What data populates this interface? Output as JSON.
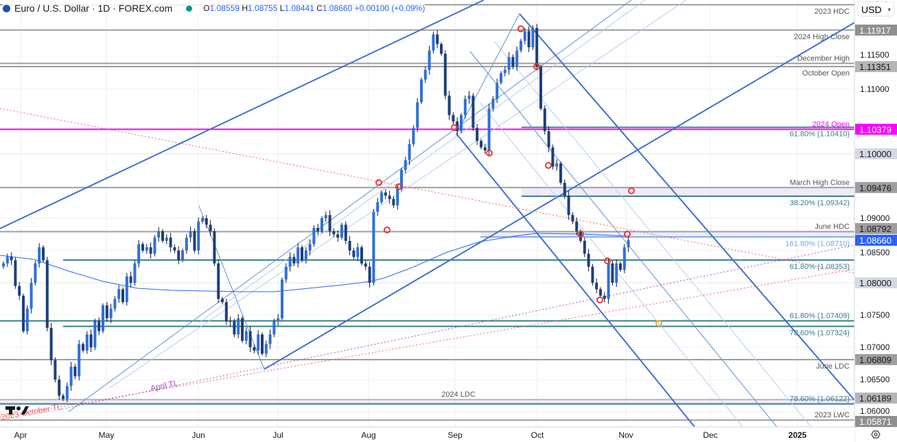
{
  "header": {
    "symbol": "Euro / U.S. Dollar · 1D · FOREX.com",
    "open": "1.08559",
    "high": "1.08755",
    "low": "1.08441",
    "close": "1.08660",
    "change": "+0.00100 (+0.09%)",
    "o_label": "O",
    "h_label": "H",
    "l_label": "L",
    "c_label": "C"
  },
  "currency_selector": "USD",
  "chart_data": {
    "type": "candlestick",
    "title": "",
    "x_tick_labels": [
      "Apr",
      "May",
      "Jun",
      "Jul",
      "Aug",
      "Sep",
      "Oct",
      "Nov",
      "Dec",
      "2025"
    ],
    "y_range": [
      1.0565,
      1.1235
    ],
    "y_tick_labels": [
      "1.11500",
      "1.11000",
      "1.09000",
      "1.08500",
      "1.07500",
      "1.07000",
      "1.06500",
      "1.06000"
    ],
    "grid": true,
    "close": [
      1.083,
      1.084,
      1.0835,
      1.0795,
      1.078,
      1.0725,
      1.076,
      1.08,
      1.083,
      1.0855,
      1.0835,
      1.073,
      1.068,
      1.065,
      1.0625,
      1.062,
      1.064,
      1.067,
      1.0655,
      1.0705,
      1.0695,
      1.072,
      1.07,
      1.074,
      1.0725,
      1.0765,
      1.0745,
      1.076,
      1.0775,
      1.079,
      1.077,
      1.081,
      1.08,
      1.083,
      1.086,
      1.085,
      1.0855,
      1.0845,
      1.087,
      1.088,
      1.0865,
      1.087,
      1.0855,
      1.085,
      1.0835,
      1.085,
      1.087,
      1.088,
      1.085,
      1.0895,
      1.09,
      1.089,
      1.088,
      1.083,
      1.0775,
      1.077,
      1.074,
      1.074,
      1.072,
      1.0745,
      1.071,
      1.0725,
      1.07,
      1.0695,
      1.072,
      1.069,
      1.0705,
      1.072,
      1.074,
      1.0745,
      1.0805,
      1.0825,
      1.084,
      1.083,
      1.0855,
      1.0835,
      1.085,
      1.086,
      1.0885,
      1.088,
      1.09,
      1.0905,
      1.088,
      1.0875,
      1.087,
      1.089,
      1.0865,
      1.085,
      1.084,
      1.0855,
      1.083,
      1.0825,
      1.08,
      1.091,
      1.0925,
      1.094,
      1.0935,
      1.093,
      1.092,
      1.0945,
      1.0975,
      1.099,
      1.1015,
      1.104,
      1.108,
      1.1115,
      1.113,
      1.116,
      1.1185,
      1.117,
      1.1155,
      1.109,
      1.106,
      1.105,
      1.1035,
      1.106,
      1.1085,
      1.109,
      1.104,
      1.102,
      1.101,
      1.1005,
      1.107,
      1.1085,
      1.111,
      1.1125,
      1.113,
      1.115,
      1.1135,
      1.116,
      1.1175,
      1.119,
      1.1165,
      1.1195,
      1.1135,
      1.107,
      1.1035,
      1.101,
      1.098,
      1.0985,
      1.0955,
      1.0935,
      1.0905,
      1.0895,
      1.088,
      1.0865,
      1.0845,
      1.0825,
      1.08,
      1.079,
      1.078,
      1.0775,
      1.083,
      1.08,
      1.083,
      1.082,
      1.0855,
      1.0866
    ],
    "levels": [
      {
        "label": "2023 HDC",
        "price": 1.1231,
        "color": "#9e9e9e"
      },
      {
        "label": "2024 High Close",
        "price": 1.11917,
        "color": "#9e9e9e",
        "axis": "1.11917",
        "axis_bg": "#8f8f8f"
      },
      {
        "label": "December High",
        "price": 1.114,
        "color": "#9e9e9e"
      },
      {
        "label": "October Open",
        "price": 1.11351,
        "color": "#9e9e9e",
        "axis": "1.11351",
        "axis_bg": "#b5b5b5"
      },
      {
        "label": "2024 Open",
        "price": 1.10379,
        "color": "#ff00ff",
        "axis": "1.10379",
        "axis_bg": "#ff00ff"
      },
      {
        "label": "61.80% (1.10410)",
        "price": 1.1041,
        "color": "#3a7d8c"
      },
      {
        "label": "",
        "price": 1.1,
        "color": "#e6e6e6",
        "axis": "1.10000",
        "axis_bg": "#d6d9e0"
      },
      {
        "label": "March High Close",
        "price": 1.09476,
        "color": "#9e9e9e",
        "axis": "1.09476",
        "axis_bg": "#9e9e9e"
      },
      {
        "label": "38.20% (1.09342)",
        "price": 1.09342,
        "color": "#3a7d8c"
      },
      {
        "label": "June HDC",
        "price": 1.08792,
        "color": "#9e9e9e",
        "axis": "1.08792",
        "axis_bg": "#9e9e9e"
      },
      {
        "label": "161.80% (1.08710)",
        "price": 1.0871,
        "color": "#7aa7f0"
      },
      {
        "label": "61.80% (1.08353)",
        "price": 1.08353,
        "color": "#3a7d8c"
      },
      {
        "label": "",
        "price": 1.08,
        "color": "#e6e6e6",
        "axis": "1.08000",
        "axis_bg": "#d6d9e0"
      },
      {
        "label": "61.80% (1.07409)",
        "price": 1.07409,
        "color": "#3a7d8c"
      },
      {
        "label": "78.60% (1.07324)",
        "price": 1.07324,
        "color": "#3a7d8c"
      },
      {
        "label": "June LDC",
        "price": 1.06809,
        "color": "#9e9e9e",
        "axis": "1.06809",
        "axis_bg": "#9e9e9e"
      },
      {
        "label": "2024 LDC",
        "price": 1.06189,
        "color": "#b5b5b5",
        "axis": "1.06189",
        "axis_bg": "#b5b5b5"
      },
      {
        "label": "78.60% (1.06122)",
        "price": 1.06122,
        "color": "#3a7d8c"
      },
      {
        "label": "2023 LWC",
        "price": 1.05871,
        "color": "#9e9e9e",
        "axis": "1.05871",
        "axis_bg": "#8f8f8f"
      }
    ],
    "last_price": {
      "value": "1.08660",
      "color": "#2962ff"
    },
    "trendline_labels": [
      "April TL",
      "2023 October TL"
    ],
    "colors": {
      "up": "#2f6fdc",
      "down": "#1d3f7c",
      "ma": "#2962ff",
      "pitchfork": "#3e6fd1"
    }
  }
}
